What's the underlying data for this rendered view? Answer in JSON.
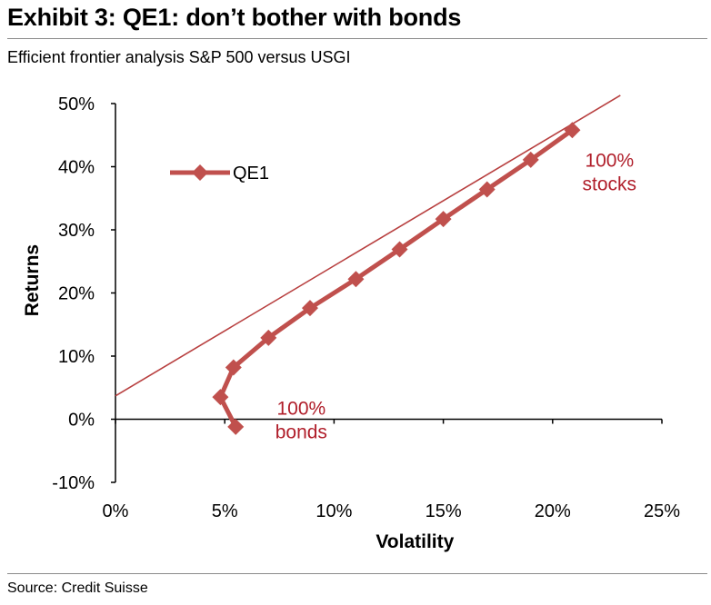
{
  "header": {
    "title": "Exhibit 3: QE1: don’t bother with bonds",
    "subtitle": "Efficient frontier analysis S&P 500 versus USGI"
  },
  "footer": {
    "source": "Source: Credit Suisse"
  },
  "colors": {
    "series": "#c0504d",
    "frontier_line": "#b84040",
    "annotation": "#b01e2a",
    "axis": "#000000"
  },
  "chart_data": {
    "type": "line",
    "xlabel": "Volatility",
    "ylabel": "Returns",
    "xlim": [
      0,
      25
    ],
    "ylim": [
      -10,
      50
    ],
    "x_ticks": [
      "0%",
      "5%",
      "10%",
      "15%",
      "20%",
      "25%"
    ],
    "y_ticks": [
      "-10%",
      "0%",
      "10%",
      "20%",
      "30%",
      "40%",
      "50%"
    ],
    "grid": false,
    "legend_position": "top-left",
    "series": [
      {
        "name": "QE1",
        "marker": "diamond",
        "points": [
          {
            "x": 5.5,
            "y": -1.2
          },
          {
            "x": 4.8,
            "y": 3.5
          },
          {
            "x": 5.4,
            "y": 8.2
          },
          {
            "x": 7.0,
            "y": 12.9
          },
          {
            "x": 8.9,
            "y": 17.6
          },
          {
            "x": 11.0,
            "y": 22.2
          },
          {
            "x": 13.0,
            "y": 26.9
          },
          {
            "x": 15.0,
            "y": 31.7
          },
          {
            "x": 17.0,
            "y": 36.4
          },
          {
            "x": 19.0,
            "y": 41.1
          },
          {
            "x": 20.9,
            "y": 45.8
          }
        ]
      }
    ],
    "frontier_line": {
      "points": [
        {
          "x": 0,
          "y": 3.7
        },
        {
          "x": 23.1,
          "y": 51.3
        }
      ]
    },
    "annotations": [
      {
        "id": "stocks",
        "lines": [
          "100%",
          "stocks"
        ],
        "x": 22.6,
        "y": 40.0
      },
      {
        "id": "bonds",
        "lines": [
          "100%",
          "bonds"
        ],
        "x": 8.5,
        "y": 0.7
      }
    ]
  }
}
